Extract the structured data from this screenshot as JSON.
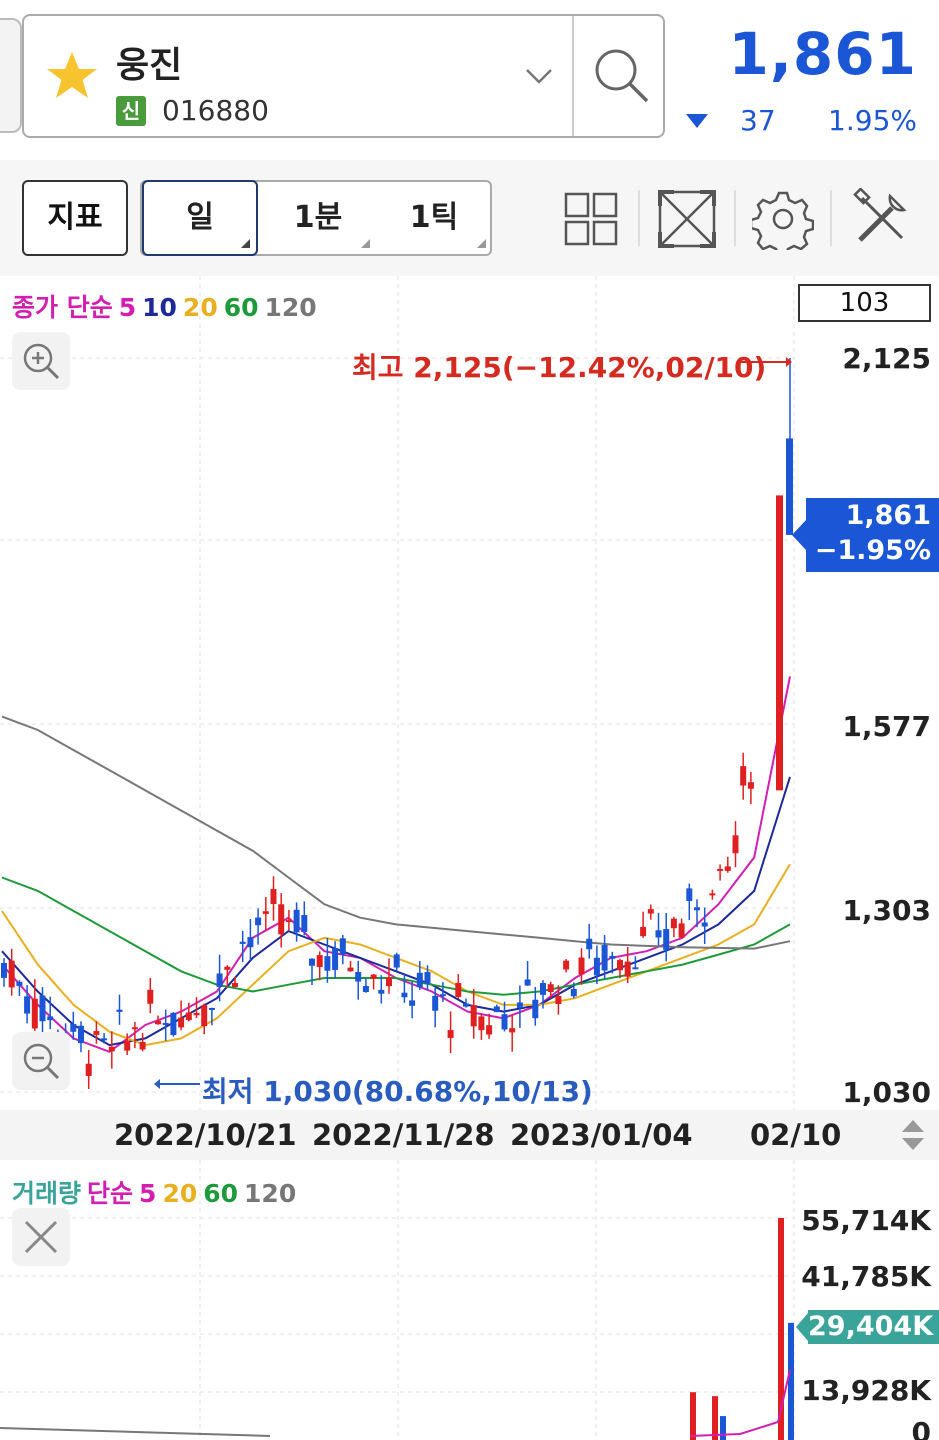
{
  "header": {
    "stock_name": "웅진",
    "badge": "신",
    "stock_code": "016880",
    "price": "1,861",
    "change_abs": "37",
    "change_pct": "1.95%",
    "icons": [
      "star-icon",
      "chevron-down-icon",
      "search-icon"
    ],
    "colors": {
      "down": "#1a56d6",
      "up": "#d42a20"
    }
  },
  "toolbar": {
    "indicator_label": "지표",
    "periods": [
      "일",
      "1분",
      "1틱"
    ],
    "active_period": "일",
    "icons": [
      "grid-layout-icon",
      "fullscreen-icon",
      "gear-icon",
      "tools-icon"
    ]
  },
  "main_chart": {
    "legend": {
      "prefix": "종가 단순",
      "periods": [
        "5",
        "10",
        "20",
        "60",
        "120"
      ],
      "colors": [
        "#d21fb2",
        "#1c2a9a",
        "#e8b020",
        "#1f9a3a",
        "#777777"
      ]
    },
    "count": "103",
    "high_label": "최고 2,125(−12.42%,02/10)",
    "low_label": "최저 1,030(80.68%,10/13)",
    "price_tag_value": "1,861",
    "price_tag_pct": "−1.95%"
  },
  "chart_data": [
    {
      "type": "candlestick",
      "title": "",
      "y_ticks": [
        "2,125",
        "1,577",
        "1,303",
        "1,030"
      ],
      "x_ticks": [
        "2022/10/21",
        "2022/11/28",
        "2023/01/04",
        "02/10"
      ],
      "ylim": [
        1030,
        2125
      ],
      "series": [
        {
          "name": "5",
          "values": [
            1220,
            1160,
            1110,
            1090,
            1130,
            1150,
            1180,
            1260,
            1290,
            1240,
            1230,
            1200,
            1180,
            1150,
            1140,
            1160,
            1200,
            1230,
            1240,
            1260,
            1310,
            1380,
            1650
          ]
        },
        {
          "name": "10",
          "values": [
            1240,
            1180,
            1130,
            1100,
            1110,
            1140,
            1170,
            1230,
            1270,
            1250,
            1230,
            1210,
            1190,
            1160,
            1150,
            1160,
            1190,
            1210,
            1230,
            1250,
            1280,
            1330,
            1500
          ]
        },
        {
          "name": "20",
          "values": [
            1300,
            1220,
            1160,
            1120,
            1100,
            1110,
            1140,
            1190,
            1240,
            1260,
            1250,
            1230,
            1210,
            1180,
            1160,
            1160,
            1170,
            1190,
            1210,
            1230,
            1250,
            1280,
            1370
          ]
        },
        {
          "name": "60",
          "values": [
            1350,
            1330,
            1300,
            1270,
            1240,
            1210,
            1190,
            1180,
            1190,
            1200,
            1200,
            1200,
            1190,
            1180,
            1175,
            1180,
            1190,
            1200,
            1210,
            1220,
            1235,
            1250,
            1280
          ]
        },
        {
          "name": "120",
          "values": [
            1590,
            1570,
            1540,
            1510,
            1480,
            1450,
            1420,
            1390,
            1350,
            1310,
            1290,
            1280,
            1275,
            1270,
            1265,
            1260,
            1255,
            1250,
            1248,
            1246,
            1245,
            1244,
            1255
          ]
        }
      ]
    },
    {
      "type": "bar",
      "title": "거래량",
      "y_ticks": [
        "55,714K",
        "41,785K",
        "29,404K",
        "13,928K",
        "0"
      ],
      "ylim": [
        0,
        55714
      ],
      "current": "29,404K"
    }
  ],
  "volume_chart": {
    "legend": {
      "label": "거래량",
      "prefix": "단순",
      "periods": [
        "5",
        "20",
        "60",
        "120"
      ],
      "colors": [
        "#d21fb2",
        "#e8b020",
        "#1f9a3a",
        "#777777"
      ]
    },
    "tag": "29,404K"
  }
}
